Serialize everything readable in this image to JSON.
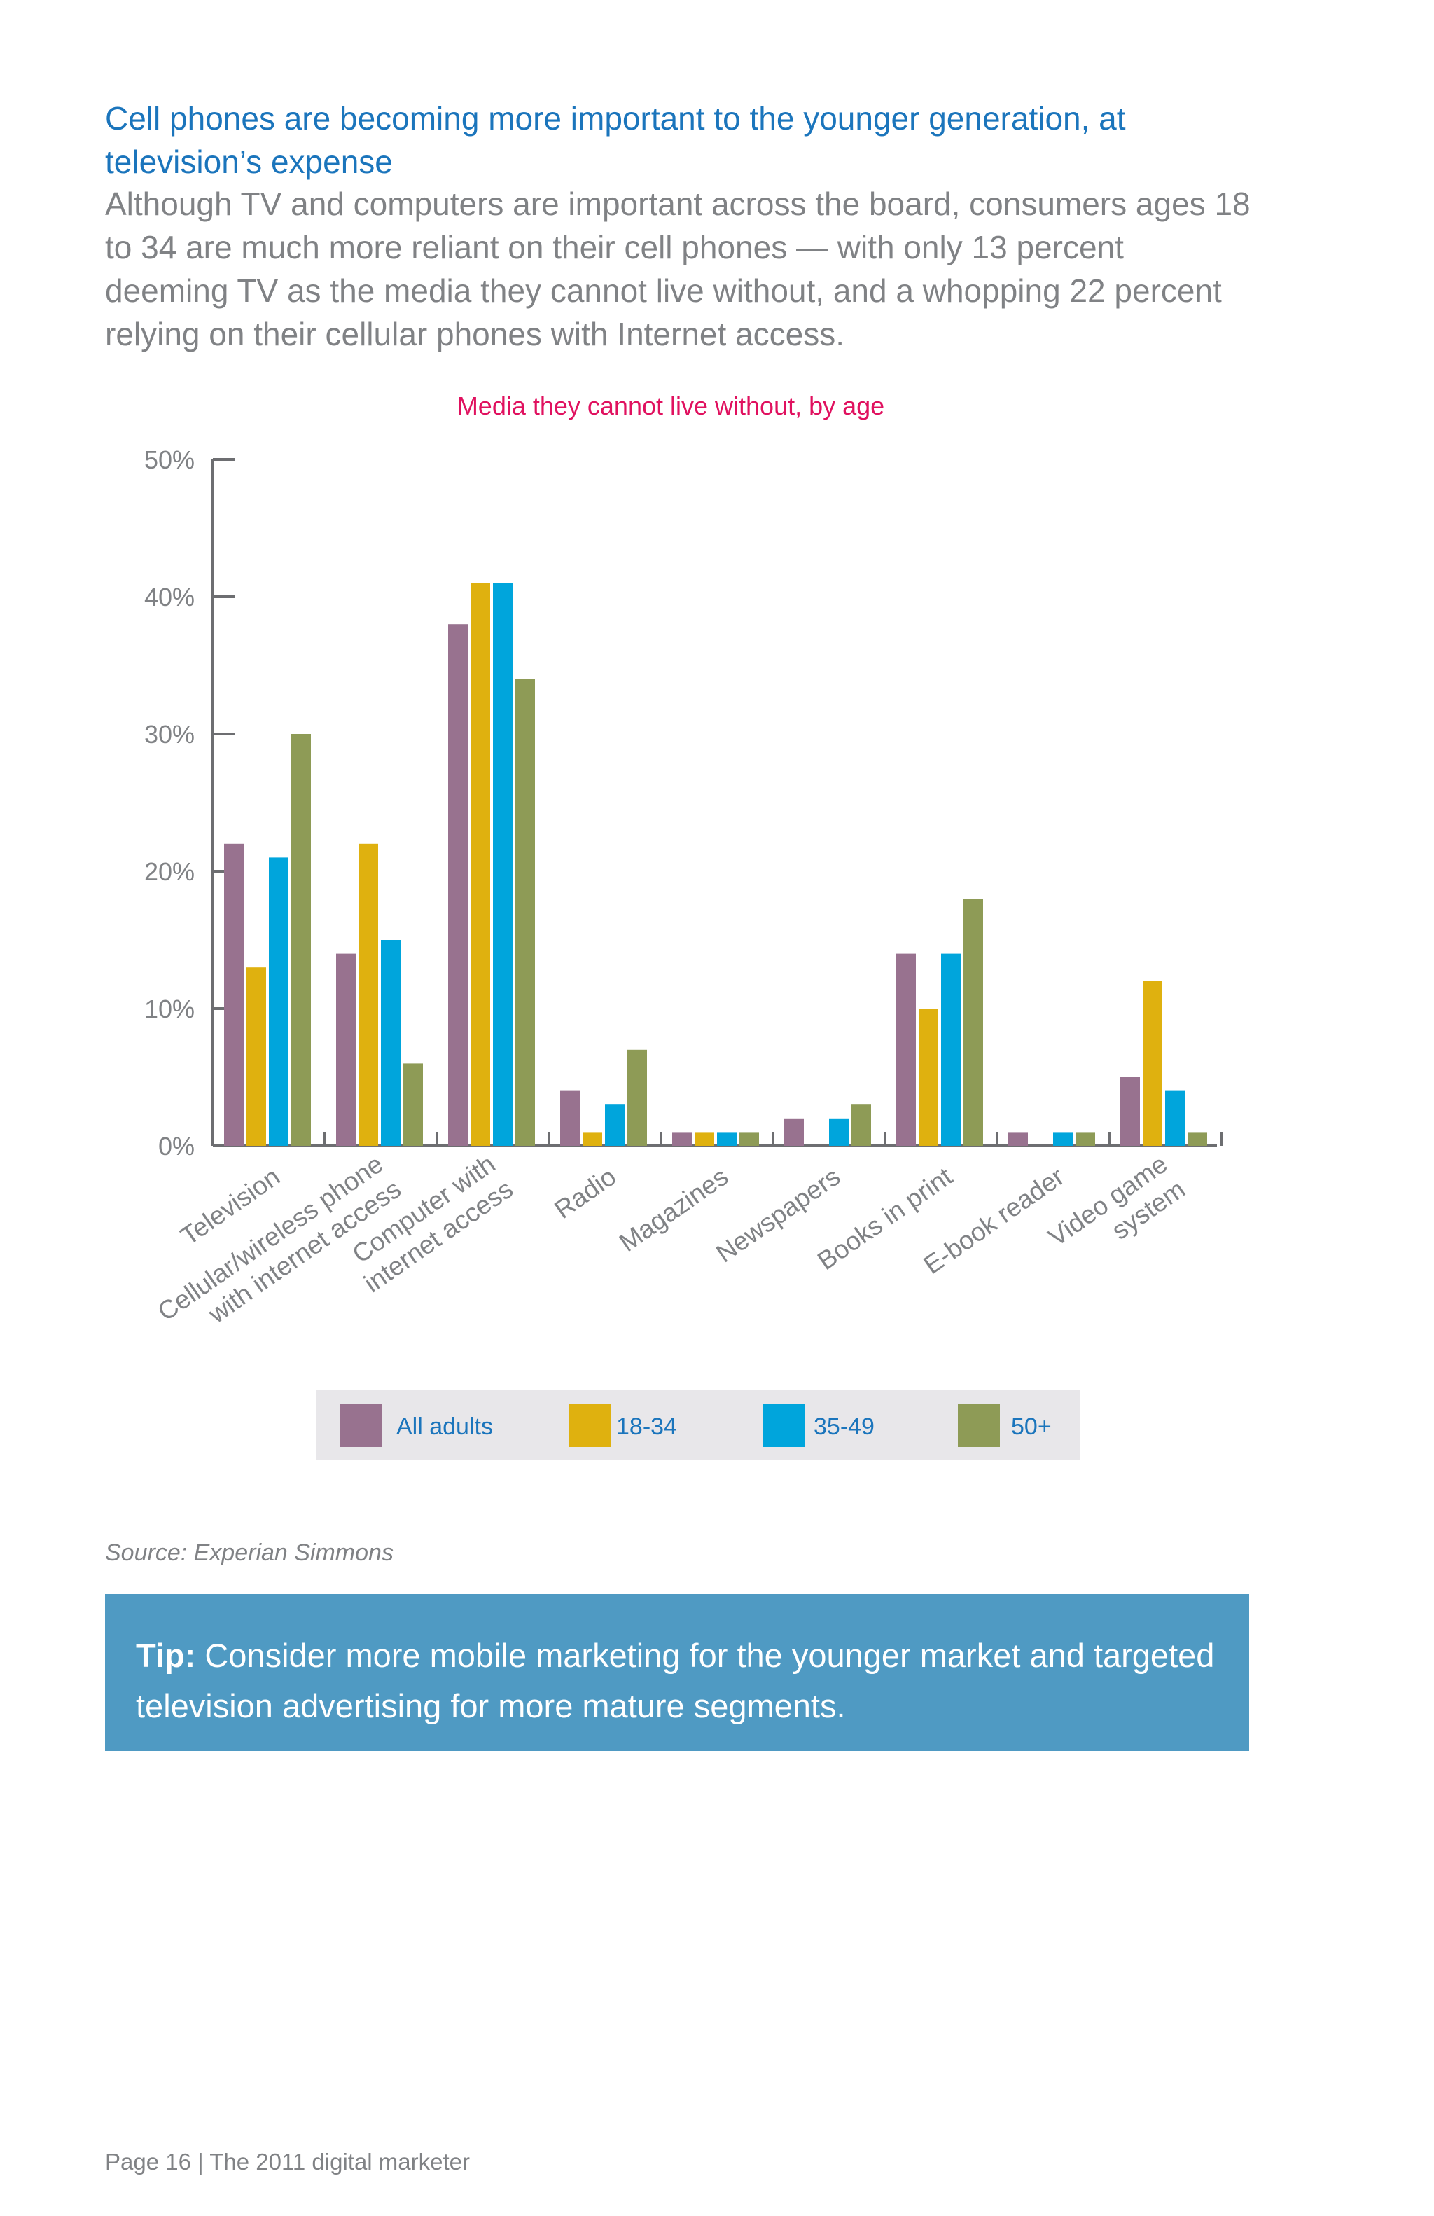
{
  "page": {
    "headline": "Cell phones are becoming more important to the younger generation, at television’s expense",
    "intro": "Although TV and computers are important across the board, consumers ages 18 to 34 are much more reliant on their cell phones — with only 13 percent deeming TV as the media they cannot live without, and a whopping 22 percent relying on their cellular phones with Internet access.",
    "source": "Source: Experian Simmons",
    "tip_label": "Tip:",
    "tip_text": "Consider more mobile marketing for the younger market and targeted television advertising for more mature segments.",
    "footer": "Page 16  |  The 2011 digital marketer"
  },
  "chart_data": {
    "type": "bar",
    "title": "Media they cannot live without, by age",
    "xlabel": "",
    "ylabel": "",
    "ylim": [
      0,
      50
    ],
    "yticks": [
      "0%",
      "10%",
      "20%",
      "30%",
      "40%",
      "50%"
    ],
    "legend_position": "bottom",
    "categories": [
      [
        "Television"
      ],
      [
        "Cellular/wireless phone",
        "with internet access"
      ],
      [
        "Computer with",
        "internet access"
      ],
      [
        "Radio"
      ],
      [
        "Magazines"
      ],
      [
        "Newspapers"
      ],
      [
        "Books in print"
      ],
      [
        "E-book reader"
      ],
      [
        "Video game",
        "system"
      ]
    ],
    "series": [
      {
        "name": "All adults",
        "color": "#98728f",
        "values": [
          22,
          14,
          38,
          4,
          1,
          2,
          14,
          1,
          5
        ]
      },
      {
        "name": "18-34",
        "color": "#dfb10f",
        "values": [
          13,
          22,
          41,
          1,
          1,
          0,
          10,
          0,
          12
        ]
      },
      {
        "name": "35-49",
        "color": "#00a5dc",
        "values": [
          21,
          15,
          41,
          3,
          1,
          2,
          14,
          1,
          4
        ]
      },
      {
        "name": "50+",
        "color": "#8e9b56",
        "values": [
          30,
          6,
          34,
          7,
          1,
          3,
          18,
          1,
          1
        ]
      }
    ]
  }
}
